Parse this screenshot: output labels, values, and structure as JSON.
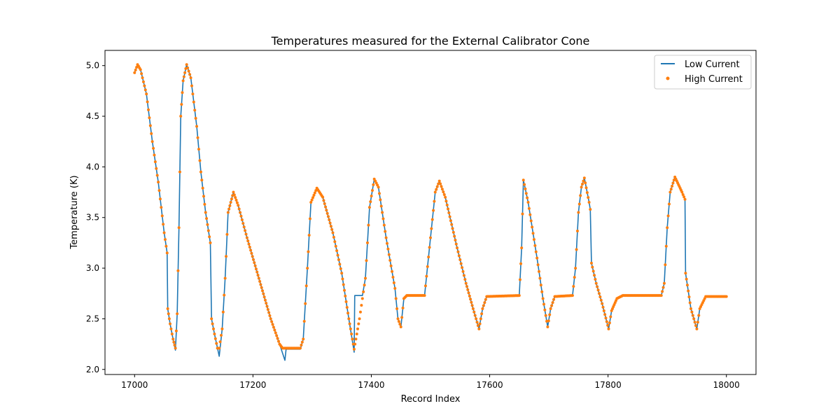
{
  "chart_data": {
    "type": "line",
    "title": "Temperatures measured for the External Calibrator Cone",
    "xlabel": "Record Index",
    "ylabel": "Temperature (K)",
    "xlim": [
      16950,
      18050
    ],
    "ylim": [
      1.95,
      5.15
    ],
    "xticks": [
      17000,
      17200,
      17400,
      17600,
      17800,
      18000
    ],
    "yticks": [
      2.0,
      2.5,
      3.0,
      3.5,
      4.0,
      4.5,
      5.0
    ],
    "xtick_labels": [
      "17000",
      "17200",
      "17400",
      "17600",
      "17800",
      "18000"
    ],
    "ytick_labels": [
      "2.0",
      "2.5",
      "3.0",
      "3.5",
      "4.0",
      "4.5",
      "5.0"
    ],
    "legend_position": "top-right",
    "series": [
      {
        "name": "Low Current",
        "style": "line",
        "color": "#1f77b4",
        "points": [
          [
            17000,
            4.93
          ],
          [
            17005,
            5.01
          ],
          [
            17010,
            4.96
          ],
          [
            17020,
            4.72
          ],
          [
            17030,
            4.25
          ],
          [
            17040,
            3.85
          ],
          [
            17050,
            3.35
          ],
          [
            17055,
            3.15
          ],
          [
            17056,
            2.6
          ],
          [
            17060,
            2.45
          ],
          [
            17065,
            2.3
          ],
          [
            17069,
            2.19
          ],
          [
            17072,
            2.55
          ],
          [
            17075,
            3.4
          ],
          [
            17078,
            4.5
          ],
          [
            17082,
            4.85
          ],
          [
            17088,
            5.01
          ],
          [
            17095,
            4.88
          ],
          [
            17105,
            4.4
          ],
          [
            17112,
            3.95
          ],
          [
            17120,
            3.55
          ],
          [
            17128,
            3.25
          ],
          [
            17130,
            2.5
          ],
          [
            17135,
            2.35
          ],
          [
            17143,
            2.13
          ],
          [
            17148,
            2.4
          ],
          [
            17153,
            2.9
          ],
          [
            17158,
            3.55
          ],
          [
            17167,
            3.75
          ],
          [
            17175,
            3.62
          ],
          [
            17190,
            3.3
          ],
          [
            17210,
            2.9
          ],
          [
            17230,
            2.5
          ],
          [
            17245,
            2.25
          ],
          [
            17254,
            2.09
          ],
          [
            17256,
            2.2
          ],
          [
            17270,
            2.2
          ],
          [
            17280,
            2.2
          ],
          [
            17285,
            2.3
          ],
          [
            17292,
            3.0
          ],
          [
            17298,
            3.65
          ],
          [
            17308,
            3.79
          ],
          [
            17318,
            3.7
          ],
          [
            17335,
            3.35
          ],
          [
            17350,
            2.95
          ],
          [
            17362,
            2.5
          ],
          [
            17371,
            2.17
          ],
          [
            17372,
            2.73
          ],
          [
            17385,
            2.73
          ],
          [
            17390,
            2.9
          ],
          [
            17397,
            3.6
          ],
          [
            17405,
            3.88
          ],
          [
            17412,
            3.8
          ],
          [
            17425,
            3.3
          ],
          [
            17440,
            2.8
          ],
          [
            17445,
            2.5
          ],
          [
            17450,
            2.42
          ],
          [
            17455,
            2.7
          ],
          [
            17460,
            2.73
          ],
          [
            17490,
            2.73
          ],
          [
            17500,
            3.3
          ],
          [
            17508,
            3.75
          ],
          [
            17515,
            3.86
          ],
          [
            17525,
            3.7
          ],
          [
            17545,
            3.2
          ],
          [
            17560,
            2.85
          ],
          [
            17572,
            2.6
          ],
          [
            17582,
            2.4
          ],
          [
            17588,
            2.6
          ],
          [
            17595,
            2.72
          ],
          [
            17650,
            2.73
          ],
          [
            17654,
            3.2
          ],
          [
            17657,
            3.87
          ],
          [
            17665,
            3.65
          ],
          [
            17680,
            3.1
          ],
          [
            17690,
            2.7
          ],
          [
            17698,
            2.42
          ],
          [
            17703,
            2.6
          ],
          [
            17710,
            2.72
          ],
          [
            17740,
            2.73
          ],
          [
            17745,
            3.0
          ],
          [
            17750,
            3.55
          ],
          [
            17755,
            3.8
          ],
          [
            17760,
            3.89
          ],
          [
            17768,
            3.65
          ],
          [
            17770,
            3.58
          ],
          [
            17772,
            3.05
          ],
          [
            17780,
            2.85
          ],
          [
            17790,
            2.65
          ],
          [
            17801,
            2.4
          ],
          [
            17806,
            2.58
          ],
          [
            17815,
            2.7
          ],
          [
            17825,
            2.73
          ],
          [
            17890,
            2.73
          ],
          [
            17895,
            2.85
          ],
          [
            17900,
            3.4
          ],
          [
            17905,
            3.75
          ],
          [
            17913,
            3.9
          ],
          [
            17925,
            3.75
          ],
          [
            17930,
            3.68
          ],
          [
            17931,
            2.95
          ],
          [
            17940,
            2.6
          ],
          [
            17945,
            2.5
          ],
          [
            17950,
            2.4
          ],
          [
            17955,
            2.6
          ],
          [
            17965,
            2.72
          ],
          [
            18000,
            2.72
          ]
        ]
      },
      {
        "name": "High Current",
        "style": "scatter",
        "color": "#ff7f0e",
        "points": [
          [
            17000,
            4.93
          ],
          [
            17005,
            5.01
          ],
          [
            17010,
            4.96
          ],
          [
            17020,
            4.72
          ],
          [
            17030,
            4.25
          ],
          [
            17040,
            3.85
          ],
          [
            17050,
            3.35
          ],
          [
            17055,
            3.15
          ],
          [
            17056,
            2.6
          ],
          [
            17060,
            2.45
          ],
          [
            17065,
            2.3
          ],
          [
            17069,
            2.21
          ],
          [
            17072,
            2.55
          ],
          [
            17075,
            3.4
          ],
          [
            17078,
            4.5
          ],
          [
            17082,
            4.85
          ],
          [
            17088,
            5.01
          ],
          [
            17095,
            4.88
          ],
          [
            17105,
            4.4
          ],
          [
            17112,
            3.95
          ],
          [
            17120,
            3.55
          ],
          [
            17128,
            3.25
          ],
          [
            17130,
            2.5
          ],
          [
            17135,
            2.35
          ],
          [
            17140,
            2.21
          ],
          [
            17143,
            2.21
          ],
          [
            17148,
            2.4
          ],
          [
            17153,
            2.9
          ],
          [
            17158,
            3.55
          ],
          [
            17167,
            3.75
          ],
          [
            17175,
            3.62
          ],
          [
            17190,
            3.3
          ],
          [
            17210,
            2.9
          ],
          [
            17230,
            2.5
          ],
          [
            17245,
            2.25
          ],
          [
            17250,
            2.21
          ],
          [
            17270,
            2.21
          ],
          [
            17280,
            2.21
          ],
          [
            17285,
            2.3
          ],
          [
            17292,
            3.0
          ],
          [
            17298,
            3.65
          ],
          [
            17308,
            3.79
          ],
          [
            17318,
            3.7
          ],
          [
            17335,
            3.35
          ],
          [
            17350,
            2.95
          ],
          [
            17362,
            2.5
          ],
          [
            17371,
            2.2
          ],
          [
            17380,
            2.5
          ],
          [
            17390,
            2.9
          ],
          [
            17397,
            3.6
          ],
          [
            17405,
            3.88
          ],
          [
            17412,
            3.8
          ],
          [
            17425,
            3.3
          ],
          [
            17440,
            2.8
          ],
          [
            17445,
            2.5
          ],
          [
            17450,
            2.42
          ],
          [
            17455,
            2.7
          ],
          [
            17460,
            2.73
          ],
          [
            17490,
            2.73
          ],
          [
            17500,
            3.3
          ],
          [
            17508,
            3.75
          ],
          [
            17515,
            3.86
          ],
          [
            17525,
            3.7
          ],
          [
            17545,
            3.2
          ],
          [
            17560,
            2.85
          ],
          [
            17572,
            2.6
          ],
          [
            17582,
            2.4
          ],
          [
            17588,
            2.6
          ],
          [
            17595,
            2.72
          ],
          [
            17650,
            2.73
          ],
          [
            17654,
            3.2
          ],
          [
            17657,
            3.87
          ],
          [
            17665,
            3.65
          ],
          [
            17680,
            3.1
          ],
          [
            17690,
            2.7
          ],
          [
            17698,
            2.42
          ],
          [
            17703,
            2.6
          ],
          [
            17710,
            2.72
          ],
          [
            17740,
            2.73
          ],
          [
            17745,
            3.0
          ],
          [
            17750,
            3.55
          ],
          [
            17755,
            3.8
          ],
          [
            17760,
            3.89
          ],
          [
            17768,
            3.65
          ],
          [
            17770,
            3.58
          ],
          [
            17772,
            3.05
          ],
          [
            17780,
            2.85
          ],
          [
            17790,
            2.65
          ],
          [
            17801,
            2.4
          ],
          [
            17806,
            2.58
          ],
          [
            17815,
            2.7
          ],
          [
            17825,
            2.73
          ],
          [
            17890,
            2.73
          ],
          [
            17895,
            2.85
          ],
          [
            17900,
            3.4
          ],
          [
            17905,
            3.75
          ],
          [
            17913,
            3.9
          ],
          [
            17925,
            3.75
          ],
          [
            17930,
            3.68
          ],
          [
            17931,
            2.95
          ],
          [
            17940,
            2.6
          ],
          [
            17945,
            2.5
          ],
          [
            17950,
            2.4
          ],
          [
            17955,
            2.6
          ],
          [
            17965,
            2.72
          ],
          [
            18000,
            2.72
          ]
        ]
      }
    ]
  }
}
